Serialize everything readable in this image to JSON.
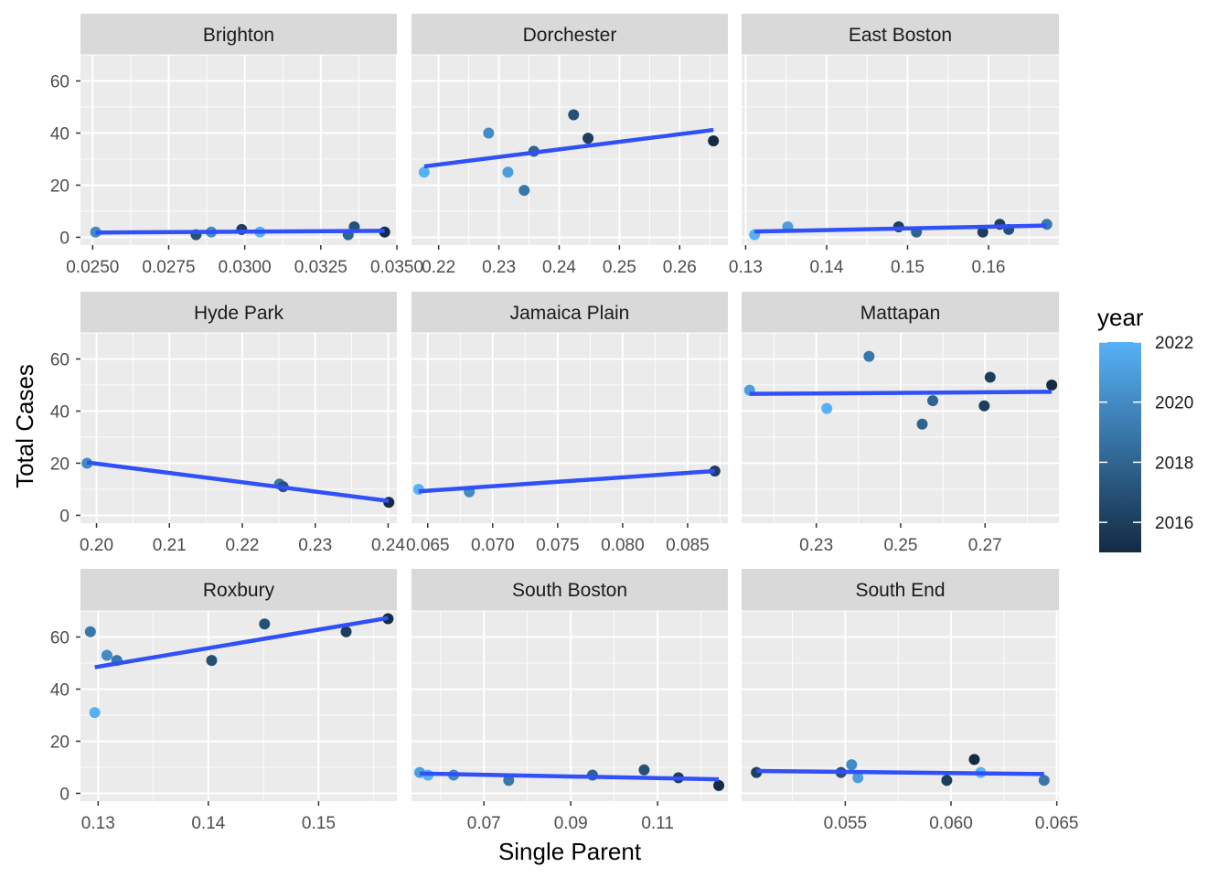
{
  "chart_data": {
    "type": "scatter",
    "facet_layout": "3x3",
    "xlabel": "Single Parent",
    "ylabel": "Total Cases",
    "shared_y": {
      "ylim": [
        -3,
        70
      ],
      "ticks": [
        0,
        20,
        40,
        60
      ]
    },
    "legend": {
      "title": "year",
      "placement": "right",
      "range": [
        2015,
        2022
      ],
      "ticks": [
        2016,
        2018,
        2020,
        2022
      ],
      "color_low": "#132B43",
      "color_high": "#56B1F7"
    },
    "trend_color": "#3050f8",
    "panels": [
      {
        "title": "Brighton",
        "xlim": [
          0.0246,
          0.035
        ],
        "xticks": [
          0.025,
          0.0275,
          0.03,
          0.0325,
          0.035
        ],
        "xtick_labels": [
          "0.0250",
          "0.0275",
          "0.0300",
          "0.0325",
          "0.0350"
        ],
        "points": [
          {
            "x": 0.0251,
            "y": 2,
            "year": 2020
          },
          {
            "x": 0.0284,
            "y": 1,
            "year": 2017
          },
          {
            "x": 0.0289,
            "y": 2,
            "year": 2020
          },
          {
            "x": 0.0299,
            "y": 3,
            "year": 2016
          },
          {
            "x": 0.0305,
            "y": 2,
            "year": 2022
          },
          {
            "x": 0.0334,
            "y": 1,
            "year": 2018
          },
          {
            "x": 0.0336,
            "y": 4,
            "year": 2017
          },
          {
            "x": 0.0346,
            "y": 2,
            "year": 2015
          }
        ],
        "trend": [
          [
            0.0251,
            1.8
          ],
          [
            0.0346,
            2.5
          ]
        ]
      },
      {
        "title": "Dorchester",
        "xlim": [
          0.2155,
          0.268
        ],
        "xticks": [
          0.22,
          0.23,
          0.24,
          0.25,
          0.26
        ],
        "xtick_labels": [
          "0.22",
          "0.23",
          "0.24",
          "0.25",
          "0.26"
        ],
        "points": [
          {
            "x": 0.2176,
            "y": 25,
            "year": 2022
          },
          {
            "x": 0.2283,
            "y": 40,
            "year": 2020
          },
          {
            "x": 0.2315,
            "y": 25,
            "year": 2021
          },
          {
            "x": 0.2342,
            "y": 18,
            "year": 2019
          },
          {
            "x": 0.2358,
            "y": 33,
            "year": 2018
          },
          {
            "x": 0.2424,
            "y": 47,
            "year": 2017
          },
          {
            "x": 0.2448,
            "y": 38,
            "year": 2016
          },
          {
            "x": 0.2656,
            "y": 37,
            "year": 2015
          }
        ],
        "trend": [
          [
            0.2176,
            27.2
          ],
          [
            0.2656,
            41.2
          ]
        ]
      },
      {
        "title": "East Boston",
        "xlim": [
          0.1295,
          0.1687
        ],
        "xticks": [
          0.13,
          0.14,
          0.15,
          0.16
        ],
        "xtick_labels": [
          "0.13",
          "0.14",
          "0.15",
          "0.16"
        ],
        "points": [
          {
            "x": 0.1311,
            "y": 1,
            "year": 2022
          },
          {
            "x": 0.1352,
            "y": 4,
            "year": 2021
          },
          {
            "x": 0.1489,
            "y": 4,
            "year": 2016
          },
          {
            "x": 0.1511,
            "y": 2,
            "year": 2018
          },
          {
            "x": 0.1593,
            "y": 2,
            "year": 2016
          },
          {
            "x": 0.1614,
            "y": 5,
            "year": 2016
          },
          {
            "x": 0.1625,
            "y": 3,
            "year": 2017
          },
          {
            "x": 0.1672,
            "y": 5,
            "year": 2019
          }
        ],
        "trend": [
          [
            0.1311,
            2.2
          ],
          [
            0.1672,
            4.5
          ]
        ]
      },
      {
        "title": "Hyde Park",
        "xlim": [
          0.1978,
          0.2412
        ],
        "xticks": [
          0.2,
          0.21,
          0.22,
          0.23,
          0.24
        ],
        "xtick_labels": [
          "0.20",
          "0.21",
          "0.22",
          "0.23",
          "0.24"
        ],
        "points": [
          {
            "x": 0.1987,
            "y": 20,
            "year": 2020
          },
          {
            "x": 0.2251,
            "y": 12,
            "year": 2019
          },
          {
            "x": 0.2256,
            "y": 11,
            "year": 2017
          },
          {
            "x": 0.2401,
            "y": 5,
            "year": 2015
          }
        ],
        "trend": [
          [
            0.1987,
            20.3
          ],
          [
            0.2401,
            5.5
          ]
        ]
      },
      {
        "title": "Jamaica Plain",
        "xlim": [
          0.06375,
          0.0881
        ],
        "xticks": [
          0.065,
          0.07,
          0.075,
          0.08,
          0.085
        ],
        "xtick_labels": [
          "0.065",
          "0.070",
          "0.075",
          "0.080",
          "0.085"
        ],
        "points": [
          {
            "x": 0.0643,
            "y": 10,
            "year": 2022
          },
          {
            "x": 0.0682,
            "y": 9,
            "year": 2020
          },
          {
            "x": 0.0871,
            "y": 17,
            "year": 2016
          }
        ],
        "trend": [
          [
            0.0643,
            9.2
          ],
          [
            0.0871,
            17.0
          ]
        ]
      },
      {
        "title": "Mattapan",
        "xlim": [
          0.2123,
          0.2875
        ],
        "xticks": [
          0.23,
          0.25,
          0.27
        ],
        "xtick_labels": [
          "0.23",
          "0.25",
          "0.27"
        ],
        "points": [
          {
            "x": 0.2142,
            "y": 48,
            "year": 2021
          },
          {
            "x": 0.2325,
            "y": 41,
            "year": 2022
          },
          {
            "x": 0.2425,
            "y": 61,
            "year": 2019
          },
          {
            "x": 0.2551,
            "y": 35,
            "year": 2018
          },
          {
            "x": 0.2576,
            "y": 44,
            "year": 2018
          },
          {
            "x": 0.2698,
            "y": 42,
            "year": 2016
          },
          {
            "x": 0.2712,
            "y": 53,
            "year": 2016
          },
          {
            "x": 0.2858,
            "y": 50,
            "year": 2015
          }
        ],
        "trend": [
          [
            0.2142,
            46.6
          ],
          [
            0.2858,
            47.4
          ]
        ]
      },
      {
        "title": "Roxbury",
        "xlim": [
          0.1284,
          0.1571
        ],
        "xticks": [
          0.13,
          0.14,
          0.15
        ],
        "xtick_labels": [
          "0.13",
          "0.14",
          "0.15"
        ],
        "points": [
          {
            "x": 0.1293,
            "y": 62,
            "year": 2019
          },
          {
            "x": 0.1297,
            "y": 31,
            "year": 2022
          },
          {
            "x": 0.1308,
            "y": 53,
            "year": 2020
          },
          {
            "x": 0.1317,
            "y": 51,
            "year": 2019
          },
          {
            "x": 0.1403,
            "y": 51,
            "year": 2017
          },
          {
            "x": 0.1451,
            "y": 65,
            "year": 2017
          },
          {
            "x": 0.1525,
            "y": 62,
            "year": 2016
          },
          {
            "x": 0.1563,
            "y": 67,
            "year": 2015
          }
        ],
        "trend": [
          [
            0.1297,
            48.4
          ],
          [
            0.1563,
            67.3
          ]
        ]
      },
      {
        "title": "South Boston",
        "xlim": [
          0.0533,
          0.1262
        ],
        "xticks": [
          0.07,
          0.09,
          0.11
        ],
        "xtick_labels": [
          "0.07",
          "0.09",
          "0.11"
        ],
        "points": [
          {
            "x": 0.0552,
            "y": 8,
            "year": 2021
          },
          {
            "x": 0.0571,
            "y": 7,
            "year": 2022
          },
          {
            "x": 0.063,
            "y": 7,
            "year": 2020
          },
          {
            "x": 0.0757,
            "y": 5,
            "year": 2019
          },
          {
            "x": 0.095,
            "y": 7,
            "year": 2018
          },
          {
            "x": 0.1069,
            "y": 9,
            "year": 2017
          },
          {
            "x": 0.1148,
            "y": 6,
            "year": 2016
          },
          {
            "x": 0.1241,
            "y": 3,
            "year": 2015
          }
        ],
        "trend": [
          [
            0.0552,
            7.6
          ],
          [
            0.1241,
            5.4
          ]
        ]
      },
      {
        "title": "South End",
        "xlim": [
          0.0501,
          0.0651
        ],
        "xticks": [
          0.055,
          0.06,
          0.065
        ],
        "xtick_labels": [
          "0.055",
          "0.060",
          "0.065"
        ],
        "points": [
          {
            "x": 0.0508,
            "y": 8,
            "year": 2016
          },
          {
            "x": 0.0548,
            "y": 8,
            "year": 2017
          },
          {
            "x": 0.0553,
            "y": 11,
            "year": 2020
          },
          {
            "x": 0.0556,
            "y": 6,
            "year": 2021
          },
          {
            "x": 0.0598,
            "y": 5,
            "year": 2016
          },
          {
            "x": 0.0611,
            "y": 13,
            "year": 2015
          },
          {
            "x": 0.0614,
            "y": 8,
            "year": 2022
          },
          {
            "x": 0.0644,
            "y": 5,
            "year": 2019
          }
        ],
        "trend": [
          [
            0.0508,
            8.6
          ],
          [
            0.0644,
            7.4
          ]
        ]
      }
    ]
  }
}
